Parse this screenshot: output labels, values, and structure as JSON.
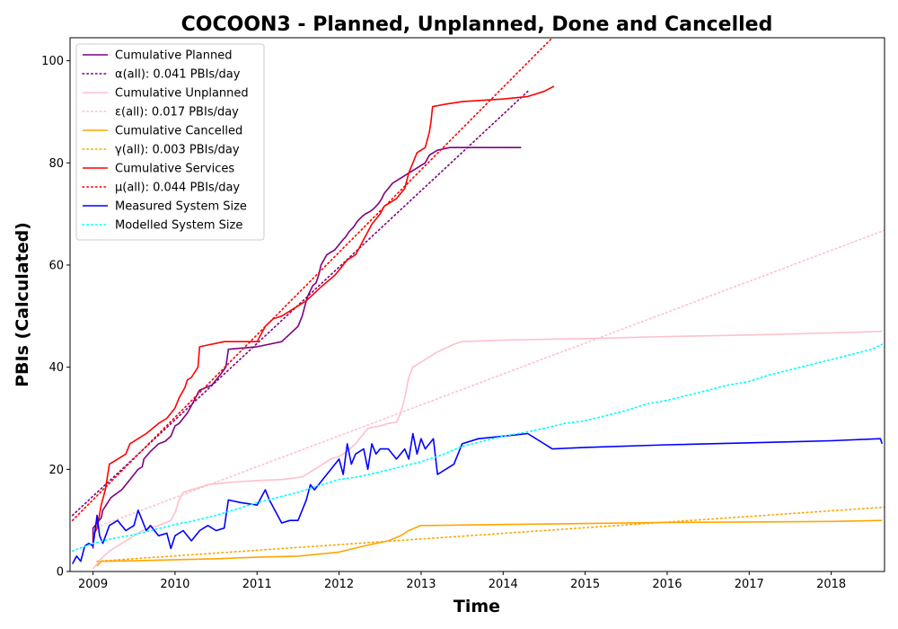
{
  "chart_data": {
    "type": "line",
    "title": "COCOON3 - Planned, Unplanned, Done  and Cancelled",
    "xlabel": "Time",
    "ylabel": "PBIs (Calculated)",
    "xlim": [
      2008.72,
      2018.65
    ],
    "ylim": [
      0,
      104.5
    ],
    "xticks": [
      "2009",
      "2010",
      "2011",
      "2012",
      "2013",
      "2014",
      "2015",
      "2016",
      "2017",
      "2018"
    ],
    "yticks": [
      0,
      20,
      40,
      60,
      80,
      100
    ],
    "grid": false,
    "legend_position": "top-left",
    "series": [
      {
        "name": "Cumulative Planned",
        "style": "solid",
        "color": "#800080",
        "x": [
          2009.0,
          2009.0,
          2009.1,
          2009.12,
          2009.22,
          2009.35,
          2009.45,
          2009.55,
          2009.6,
          2009.62,
          2009.7,
          2009.8,
          2009.88,
          2009.95,
          2010.0,
          2010.05,
          2010.1,
          2010.15,
          2010.2,
          2010.25,
          2010.28,
          2010.3,
          2010.45,
          2010.55,
          2010.62,
          2010.65,
          2011.0,
          2011.3,
          2011.5,
          2011.55,
          2011.6,
          2011.62,
          2011.68,
          2011.72,
          2011.75,
          2011.78,
          2011.85,
          2011.95,
          2012.05,
          2012.08,
          2012.12,
          2012.18,
          2012.22,
          2012.28,
          2012.32,
          2012.38,
          2012.42,
          2012.45,
          2012.48,
          2012.5,
          2012.52,
          2012.55,
          2012.6,
          2012.65,
          2012.75,
          2012.85,
          2012.9,
          2012.95,
          2013.0,
          2013.05,
          2013.1,
          2013.15,
          2013.2,
          2013.35,
          2013.45,
          2013.55,
          2013.75,
          2014.0,
          2014.22
        ],
        "y": [
          4.5,
          8.5,
          10.5,
          12,
          14.5,
          16,
          18,
          20,
          20.5,
          22,
          23.5,
          25,
          25.5,
          26.5,
          28.5,
          29,
          30,
          31,
          32.5,
          34,
          35,
          35.5,
          36.5,
          38.5,
          40,
          43.5,
          44,
          45,
          48,
          50,
          53,
          54,
          56,
          56.5,
          58,
          60,
          62,
          63,
          65,
          65.5,
          66.5,
          67.5,
          68.5,
          69.5,
          70,
          70.5,
          71,
          71.5,
          72,
          72.5,
          73,
          74,
          75,
          76,
          77,
          78,
          78.5,
          79,
          79.5,
          80,
          81.5,
          82,
          82.5,
          83,
          83,
          83,
          83,
          83,
          83
        ]
      },
      {
        "name": "α(all): 0.041 PBIs/day",
        "style": "dotted",
        "color": "#800080",
        "x": [
          2008.75,
          2014.3
        ],
        "y": [
          11,
          94
        ]
      },
      {
        "name": "Cumulative Unplanned",
        "style": "solid",
        "color": "#ffc0cb",
        "x": [
          2009.0,
          2009.05,
          2009.1,
          2009.2,
          2009.4,
          2009.6,
          2009.8,
          2009.95,
          2010.0,
          2010.05,
          2010.1,
          2010.2,
          2010.4,
          2010.7,
          2011.0,
          2011.3,
          2011.55,
          2011.6,
          2011.7,
          2011.8,
          2011.9,
          2012.0,
          2012.1,
          2012.2,
          2012.3,
          2012.35,
          2012.4,
          2012.5,
          2012.6,
          2012.7,
          2012.75,
          2012.8,
          2012.85,
          2012.9,
          2012.95,
          2013.0,
          2013.1,
          2013.2,
          2013.4,
          2013.5,
          2014.0,
          2015.0,
          2016.0,
          2017.0,
          2018.0,
          2018.62
        ],
        "y": [
          0.5,
          1.5,
          2.5,
          4,
          6,
          8,
          9,
          10,
          11.5,
          14,
          15.5,
          16,
          17,
          17.5,
          17.8,
          18,
          18.5,
          19,
          20,
          21,
          22,
          22.5,
          23.5,
          25,
          27,
          28,
          28.2,
          28.5,
          29,
          29.2,
          31,
          34,
          38,
          40,
          40.5,
          41,
          42,
          43,
          44.5,
          45,
          45.3,
          45.6,
          46,
          46.3,
          46.7,
          47
        ]
      },
      {
        "name": "ε(all): 0.017 PBIs/day",
        "style": "dotted",
        "color": "#ffc0cb",
        "x": [
          2009.05,
          2018.65
        ],
        "y": [
          8.7,
          66.8
        ]
      },
      {
        "name": "Cumulative Cancelled",
        "style": "solid",
        "color": "#ffa500",
        "x": [
          2009.05,
          2009.1,
          2009.12,
          2009.5,
          2010.0,
          2010.5,
          2011.0,
          2011.5,
          2012.0,
          2012.3,
          2012.6,
          2012.75,
          2012.85,
          2012.92,
          2013.0,
          2013.07,
          2013.5,
          2014.0,
          2015.0,
          2016.0,
          2017.0,
          2018.0,
          2018.62
        ],
        "y": [
          1,
          2,
          2,
          2.1,
          2.3,
          2.5,
          2.8,
          3,
          3.8,
          5,
          6,
          7,
          8,
          8.5,
          9,
          9,
          9.1,
          9.2,
          9.4,
          9.6,
          9.7,
          9.8,
          10
        ]
      },
      {
        "name": "γ(all): 0.003 PBIs/day",
        "style": "dotted",
        "color": "#ffa500",
        "x": [
          2009.05,
          2018.65
        ],
        "y": [
          2.0,
          12.6
        ]
      },
      {
        "name": "Cumulative Services",
        "style": "solid",
        "color": "#ff0000",
        "x": [
          2009.0,
          2009.05,
          2009.1,
          2009.15,
          2009.2,
          2009.3,
          2009.4,
          2009.45,
          2009.55,
          2009.65,
          2009.8,
          2009.9,
          2010.0,
          2010.05,
          2010.12,
          2010.15,
          2010.2,
          2010.28,
          2010.3,
          2010.6,
          2011.0,
          2011.1,
          2011.2,
          2011.3,
          2011.5,
          2011.6,
          2011.8,
          2011.95,
          2012.05,
          2012.1,
          2012.2,
          2012.3,
          2012.4,
          2012.45,
          2012.5,
          2012.55,
          2012.6,
          2012.7,
          2012.75,
          2012.8,
          2012.85,
          2012.9,
          2012.95,
          2013.05,
          2013.1,
          2013.12,
          2013.14,
          2013.3,
          2013.5,
          2014.0,
          2014.3,
          2014.5,
          2014.62
        ],
        "y": [
          7,
          8.5,
          13,
          16,
          21,
          22,
          23,
          25,
          26,
          27,
          29,
          30,
          32,
          34,
          36,
          37.5,
          38,
          40,
          44,
          45,
          45,
          48,
          49.5,
          50,
          52,
          53,
          56,
          58,
          60,
          61,
          62,
          65,
          68,
          69,
          70,
          71.5,
          72,
          73,
          74,
          75,
          78,
          80,
          82,
          83,
          86,
          88,
          91,
          91.5,
          92,
          92.5,
          93,
          94,
          95
        ]
      },
      {
        "name": "μ(all): 0.044 PBIs/day",
        "style": "dotted",
        "color": "#ff0000",
        "x": [
          2008.75,
          2014.6
        ],
        "y": [
          10,
          104.5
        ]
      },
      {
        "name": "Measured System Size",
        "style": "solid",
        "color": "#0000ff",
        "x": [
          2008.75,
          2008.8,
          2008.85,
          2008.9,
          2008.95,
          2009.0,
          2009.05,
          2009.08,
          2009.12,
          2009.2,
          2009.3,
          2009.4,
          2009.5,
          2009.55,
          2009.6,
          2009.65,
          2009.7,
          2009.8,
          2009.9,
          2009.95,
          2010.0,
          2010.1,
          2010.2,
          2010.3,
          2010.4,
          2010.5,
          2010.6,
          2010.65,
          2010.8,
          2011.0,
          2011.1,
          2011.15,
          2011.2,
          2011.3,
          2011.4,
          2011.5,
          2011.6,
          2011.65,
          2011.7,
          2011.8,
          2011.9,
          2012.0,
          2012.05,
          2012.1,
          2012.15,
          2012.2,
          2012.3,
          2012.35,
          2012.4,
          2012.45,
          2012.5,
          2012.6,
          2012.7,
          2012.8,
          2012.85,
          2012.9,
          2012.95,
          2013.0,
          2013.05,
          2013.1,
          2013.15,
          2013.2,
          2013.3,
          2013.4,
          2013.5,
          2013.7,
          2014.0,
          2014.3,
          2014.6,
          2015.0,
          2016.0,
          2017.0,
          2018.0,
          2018.6,
          2018.62
        ],
        "y": [
          1.5,
          3,
          2,
          5,
          5.5,
          5,
          11,
          7,
          5.5,
          9,
          10,
          8,
          9,
          12,
          10,
          8,
          9,
          7,
          7.5,
          4.5,
          7,
          8,
          6,
          8,
          9,
          8,
          8.5,
          14,
          13.5,
          13,
          16,
          14,
          12.5,
          9.5,
          10,
          10,
          14,
          17,
          16,
          18,
          20,
          22,
          19,
          25,
          21,
          23,
          24,
          20,
          25,
          23,
          24,
          24,
          22,
          24,
          22,
          27,
          23,
          26,
          24,
          25,
          26,
          19,
          20,
          21,
          25,
          26,
          26.5,
          27,
          24,
          24.3,
          24.8,
          25.2,
          25.6,
          26,
          25
        ]
      },
      {
        "name": "Modelled System Size",
        "style": "dotted",
        "color": "#00ffff",
        "x": [
          2008.75,
          2009.0,
          2009.25,
          2009.5,
          2009.75,
          2010.0,
          2010.25,
          2010.5,
          2010.75,
          2011.0,
          2011.25,
          2011.5,
          2011.75,
          2012.0,
          2012.25,
          2012.5,
          2012.75,
          2013.0,
          2013.25,
          2013.5,
          2013.75,
          2014.0,
          2014.25,
          2014.5,
          2014.75,
          2015.0,
          2015.25,
          2015.5,
          2015.75,
          2016.0,
          2016.25,
          2016.5,
          2016.75,
          2017.0,
          2017.25,
          2017.5,
          2017.75,
          2018.0,
          2018.25,
          2018.5,
          2018.62
        ],
        "y": [
          4,
          5.5,
          6.5,
          7.2,
          8.2,
          9.2,
          10,
          11,
          12.2,
          13.5,
          14.5,
          15.5,
          16.8,
          18,
          18.6,
          19.5,
          20.5,
          21.5,
          22.8,
          24.5,
          25.5,
          26.5,
          27.2,
          28,
          29,
          29.5,
          30.5,
          31.5,
          32.8,
          33.5,
          34.5,
          35.5,
          36.5,
          37.2,
          38.5,
          39.5,
          40.5,
          41.5,
          42.5,
          43.5,
          44.5
        ]
      }
    ]
  }
}
